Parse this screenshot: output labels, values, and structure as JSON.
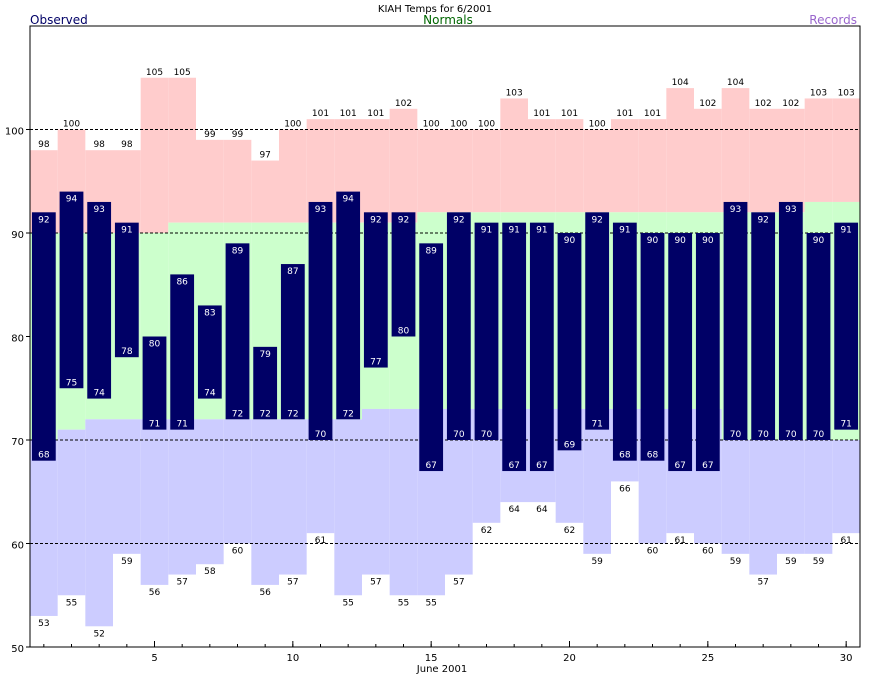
{
  "chart_data": {
    "type": "bar",
    "title": "KIAH Temps for 6/2001",
    "xlabel": "June 2001",
    "ylabel": "",
    "ylim": [
      50,
      110
    ],
    "xlim": [
      0.5,
      30.5
    ],
    "yticks": [
      50,
      60,
      70,
      80,
      90,
      100
    ],
    "xticks": [
      5,
      10,
      15,
      20,
      25,
      30
    ],
    "grid": "dashed at 60, 70, 90, 100",
    "legend": [
      {
        "name": "Observed",
        "position": "top-left",
        "color": "#000066"
      },
      {
        "name": "Normals",
        "position": "top-center",
        "color": "#006600"
      },
      {
        "name": "Records",
        "position": "top-right",
        "color": "#9966cc"
      }
    ],
    "days": [
      1,
      2,
      3,
      4,
      5,
      6,
      7,
      8,
      9,
      10,
      11,
      12,
      13,
      14,
      15,
      16,
      17,
      18,
      19,
      20,
      21,
      22,
      23,
      24,
      25,
      26,
      27,
      28,
      29,
      30
    ],
    "series": [
      {
        "name": "Observed",
        "high": [
          92,
          94,
          93,
          91,
          80,
          86,
          83,
          89,
          79,
          87,
          93,
          94,
          92,
          92,
          89,
          92,
          91,
          91,
          91,
          90,
          92,
          91,
          90,
          90,
          90,
          93,
          92,
          93,
          90,
          91
        ],
        "low": [
          68,
          75,
          74,
          78,
          71,
          71,
          74,
          72,
          72,
          72,
          70,
          72,
          77,
          80,
          67,
          70,
          70,
          67,
          67,
          69,
          71,
          68,
          68,
          67,
          67,
          70,
          70,
          70,
          70,
          71
        ],
        "color": "#000066"
      },
      {
        "name": "Normals",
        "high": [
          90,
          90,
          90,
          90,
          90,
          91,
          91,
          91,
          91,
          91,
          91,
          91,
          91,
          91,
          92,
          92,
          92,
          92,
          92,
          92,
          92,
          92,
          92,
          92,
          92,
          92,
          92,
          92,
          93,
          93
        ],
        "low": [
          70,
          71,
          72,
          72,
          72,
          72,
          72,
          72,
          72,
          72,
          72,
          72,
          73,
          73,
          73,
          73,
          73,
          73,
          73,
          73,
          73,
          73,
          73,
          73,
          73,
          70,
          70,
          70,
          70,
          70
        ],
        "color": "#ccffcc"
      },
      {
        "name": "Records",
        "high": [
          98,
          100,
          98,
          98,
          105,
          105,
          99,
          99,
          97,
          100,
          101,
          101,
          101,
          102,
          100,
          100,
          100,
          103,
          101,
          101,
          100,
          101,
          101,
          104,
          102,
          104,
          102,
          102,
          103,
          103
        ],
        "low": [
          53,
          55,
          52,
          59,
          56,
          57,
          58,
          60,
          56,
          57,
          61,
          55,
          57,
          55,
          55,
          57,
          62,
          64,
          64,
          62,
          59,
          66,
          60,
          61,
          60,
          59,
          57,
          59,
          59,
          61
        ],
        "high_color": "#ffcccc",
        "low_color": "#ccccff"
      }
    ],
    "colors": {
      "observed_bar": "#000066",
      "record_high_fill": "#ffcccc",
      "record_low_fill": "#ccccff",
      "normal_fill": "#ccffcc",
      "normals_label": "#006600",
      "records_label": "#9966cc",
      "observed_label": "#000066"
    }
  }
}
